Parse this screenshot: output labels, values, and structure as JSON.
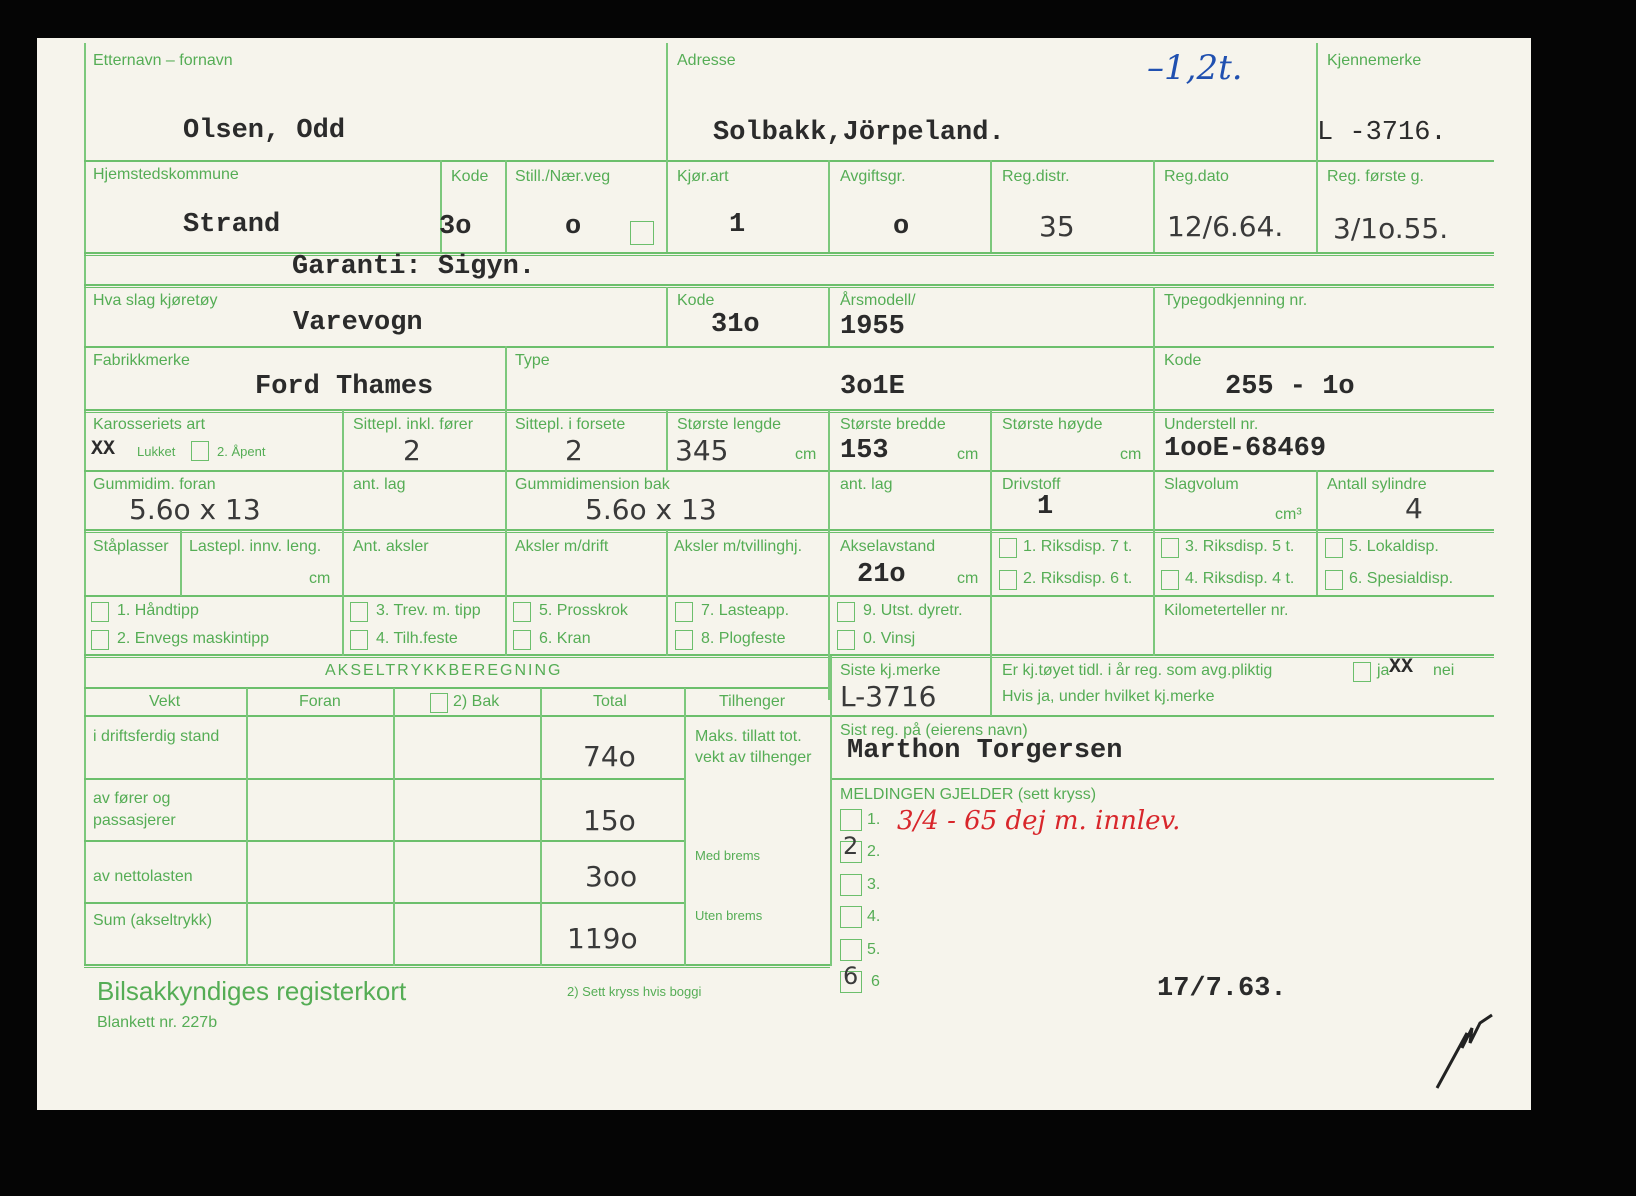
{
  "colors": {
    "line": "#6cbf6c",
    "label": "#55ad55",
    "ink": "#2b2b2b",
    "red_ink": "#d8262b",
    "blue_ink": "#2050b0"
  },
  "labels": {
    "name": "Etternavn – fornavn",
    "address": "Adresse",
    "reg_mark": "Kjennemerke",
    "municipality": "Hjemstedskommune",
    "code": "Kode",
    "still": "Still./Nær.veg",
    "kjorart": "Kjør.art",
    "avgift": "Avgiftsgr.",
    "regdistr": "Reg.distr.",
    "regdato": "Reg.dato",
    "regforste": "Reg. første g.",
    "vehicle_type": "Hva slag kjøretøy",
    "code2": "Kode",
    "model_year": "Årsmodell/",
    "type_approval": "Typegodkjenning nr.",
    "make": "Fabrikkmerke",
    "type": "Type",
    "code3": "Kode",
    "body": "Karosseriets art",
    "closed": "Lukket",
    "open": "2. Åpent",
    "seats_incl": "Sittepl. inkl. fører",
    "seats_front": "Sittepl. i forsete",
    "max_length": "Største lengde",
    "max_width": "Største bredde",
    "max_height": "Største høyde",
    "chassis": "Understell nr.",
    "cm": "cm",
    "cm3": "cm³",
    "tyre_front": "Gummidim. foran",
    "layers": "ant. lag",
    "tyre_rear": "Gummidimension bak",
    "layers2": "ant. lag",
    "fuel": "Drivstoff",
    "displacement": "Slagvolum",
    "cylinders": "Antall sylindre",
    "standing": "Ståplasser",
    "cargo_len": "Lastepl. innv. leng.",
    "axles": "Ant. aksler",
    "axles_drive": "Aksler m/drift",
    "axles_twin": "Aksler m/tvillinghj.",
    "wheelbase": "Akselavstand",
    "disp1": "1. Riksdisp. 7 t.",
    "disp2": "2. Riksdisp. 6 t.",
    "disp3": "3. Riksdisp. 5 t.",
    "disp4": "4. Riksdisp. 4 t.",
    "disp5": "5. Lokaldisp.",
    "disp6": "6. Spesialdisp.",
    "eq1": "1. Håndtipp",
    "eq2": "2. Envegs maskintipp",
    "eq3": "3. Trev. m. tipp",
    "eq4": "4. Tilh.feste",
    "eq5": "5. Prosskrok",
    "eq6": "6. Kran",
    "eq7": "7. Lasteapp.",
    "eq8": "8. Plogfeste",
    "eq9": "9. Utst. dyretr.",
    "eq0": "0. Vinsj",
    "odometer": "Kilometerteller nr.",
    "axle_calc": "AKSELTRYKKBEREGNING",
    "weight": "Vekt",
    "front": "Foran",
    "rear": "2) Bak",
    "total": "Total",
    "trailer": "Tilhenger",
    "row1": "i driftsferdig stand",
    "row2": "av fører og passasjerer",
    "row3": "av nettolasten",
    "row4": "Sum (akseltrykk)",
    "max_trailer": "Maks. tillatt tot. vekt av tilhenger",
    "with_brakes": "Med brems",
    "without_brakes": "Uten brems",
    "last_mark": "Siste kj.merke",
    "prev_reg": "Er kj.tøyet tidl. i år reg. som avg.pliktig",
    "yes": "ja",
    "no": "nei",
    "if_yes": "Hvis ja, under hvilket kj.merke",
    "last_owner": "Sist reg. på (eierens navn)",
    "message": "MELDINGEN GJELDER (sett kryss)",
    "m1": "1.",
    "m2": "2.",
    "m3": "3.",
    "m4": "4.",
    "m5": "5.",
    "m6": "6",
    "card_title": "Bilsakkyndiges registerkort",
    "form_no": "Blankett nr. 227b",
    "footnote": "2)  Sett kryss hvis boggi"
  },
  "values": {
    "name": "Olsen, Odd",
    "address": "Solbakk,Jörpeland.",
    "weight_note": "–1,2t.",
    "reg_mark": "L -3716.",
    "municipality": "Strand",
    "code": "3o",
    "still": "o",
    "kjorart": "1",
    "avgift": "o",
    "regdistr": "35",
    "regdato": "12/6.64.",
    "regforste": "3/1o.55.",
    "guarantee": "Garanti: Sigyn.",
    "vehicle_type": "Varevogn",
    "code2": "31o",
    "model_year": "1955",
    "make": "Ford Thames",
    "type": "3o1E",
    "code3": "255 - 1o",
    "body_mark": "XX",
    "seats_incl": "2",
    "seats_front": "2",
    "max_length": "345",
    "max_width": "153",
    "chassis": "1ooE-68469",
    "tyre_front": "5.6o x 13",
    "tyre_rear": "5.6o x 13",
    "fuel": "1",
    "cylinders": "4",
    "wheelbase": "21o",
    "total1": "74o",
    "total2": "15o",
    "total3": "3oo",
    "total4": "119o",
    "last_mark": "L-3716",
    "prev_reg_mark": "XX",
    "last_owner": "Marthon Torgersen",
    "m1_note": "3/4 - 65 dej m. innlev.",
    "m2_mark": "2",
    "m6_mark": "6",
    "date": "17/7.63."
  }
}
